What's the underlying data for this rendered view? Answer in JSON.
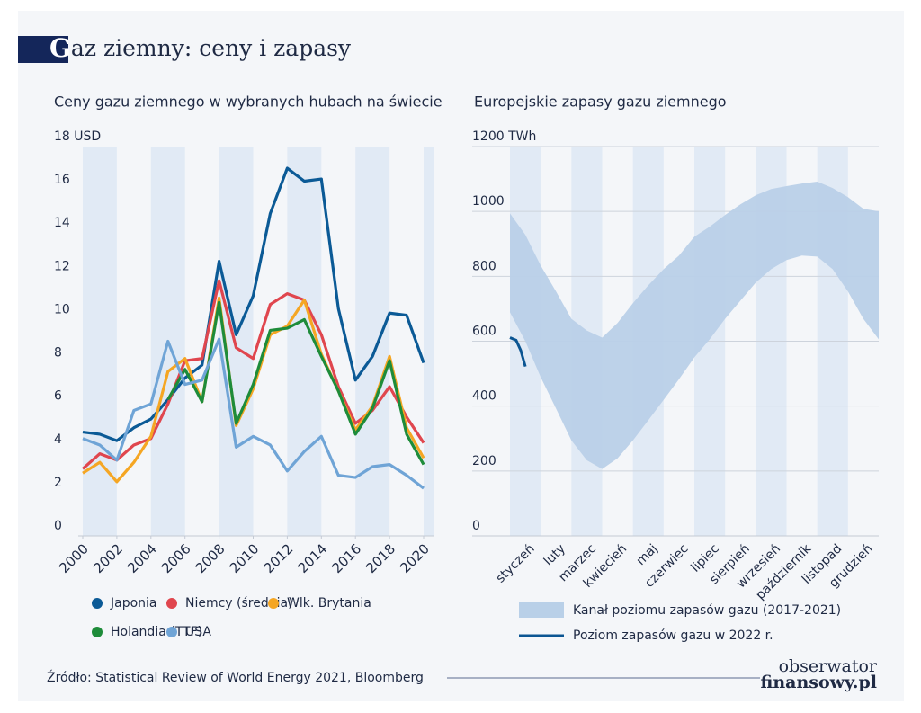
{
  "title": "Gaz ziemny: ceny i zapasy",
  "source": "Źródło: Statistical Review of World Energy 2021, Bloomberg",
  "logo": [
    "obserwator",
    "finansowy.pl"
  ],
  "chart_data": [
    {
      "type": "line",
      "title": "Ceny gazu ziemnego w wybranych hubach na świecie",
      "x": [
        2000,
        2001,
        2002,
        2003,
        2004,
        2005,
        2006,
        2007,
        2008,
        2009,
        2010,
        2011,
        2012,
        2013,
        2014,
        2015,
        2016,
        2017,
        2018,
        2019,
        2020
      ],
      "xlim": [
        2000,
        2020
      ],
      "xticks": [
        2000,
        2002,
        2004,
        2006,
        2008,
        2010,
        2012,
        2014,
        2016,
        2018,
        2020
      ],
      "ylim": [
        0,
        18
      ],
      "yticks": [
        0,
        2,
        4,
        6,
        8,
        10,
        12,
        14,
        16,
        {
          "value": 18,
          "label": "18 USD"
        }
      ],
      "grid": false,
      "series": [
        {
          "name": "Japonia",
          "color": "#0b5a96",
          "values": [
            4.8,
            4.7,
            4.4,
            5.0,
            5.4,
            6.3,
            7.3,
            7.9,
            12.7,
            9.3,
            11.1,
            14.9,
            17.0,
            16.4,
            16.5,
            10.5,
            7.2,
            8.3,
            10.3,
            10.2,
            8.0
          ]
        },
        {
          "name": "Niemcy (średnia)",
          "color": "#e0464e",
          "values": [
            3.1,
            3.8,
            3.5,
            4.2,
            4.5,
            6.1,
            8.1,
            8.2,
            11.8,
            8.7,
            8.2,
            10.7,
            11.2,
            10.9,
            9.3,
            6.9,
            5.2,
            5.8,
            6.9,
            5.5,
            4.3
          ]
        },
        {
          "name": "Wlk. Brytania",
          "color": "#f5a623",
          "values": [
            2.9,
            3.4,
            2.5,
            3.4,
            4.6,
            7.6,
            8.2,
            6.2,
            11.0,
            5.1,
            6.8,
            9.3,
            9.7,
            10.9,
            8.4,
            6.7,
            4.9,
            6.0,
            8.3,
            5.0,
            3.6
          ]
        },
        {
          "name": "Holandia (TTF)",
          "color": "#1e8c3a",
          "values": [
            null,
            null,
            null,
            null,
            null,
            6.3,
            7.7,
            6.2,
            10.8,
            5.2,
            7.0,
            9.5,
            9.6,
            10.0,
            8.3,
            6.7,
            4.7,
            5.9,
            8.1,
            4.7,
            3.3
          ]
        },
        {
          "name": "USA",
          "color": "#6fa4d6",
          "values": [
            4.5,
            4.2,
            3.5,
            5.8,
            6.1,
            9.0,
            7.0,
            7.2,
            9.1,
            4.1,
            4.6,
            4.2,
            3.0,
            3.9,
            4.6,
            2.8,
            2.7,
            3.2,
            3.3,
            2.8,
            2.2
          ]
        }
      ]
    },
    {
      "type": "area",
      "title": "Europejskie zapasy gazu ziemnego",
      "categories": [
        "styczeń",
        "luty",
        "marzec",
        "kwiecień",
        "maj",
        "czerwiec",
        "lipiec",
        "sierpień",
        "wrzesień",
        "październik",
        "listopad",
        "grudzień"
      ],
      "xlim": [
        0,
        12
      ],
      "ylim": [
        0,
        1200
      ],
      "yticks": [
        0,
        200,
        400,
        600,
        800,
        1000,
        {
          "value": 1200,
          "label": "1200 TWh"
        }
      ],
      "grid": true,
      "series": [
        {
          "name": "Kanał poziomu zapasów gazu (2017-2021)",
          "color": "#b9d0e8",
          "x": [
            0,
            0.5,
            1,
            1.5,
            2,
            2.5,
            3,
            3.5,
            4,
            4.5,
            5,
            5.5,
            6,
            6.5,
            7,
            7.5,
            8,
            8.5,
            9,
            9.5,
            10,
            10.5,
            11,
            11.5,
            12
          ],
          "upper": [
            994,
            928,
            833,
            753,
            669,
            633,
            611,
            656,
            717,
            772,
            822,
            864,
            922,
            953,
            989,
            1022,
            1050,
            1069,
            1078,
            1086,
            1092,
            1072,
            1044,
            1008,
            1000
          ],
          "lower": [
            689,
            600,
            489,
            392,
            294,
            233,
            206,
            239,
            294,
            356,
            419,
            483,
            550,
            606,
            669,
            725,
            781,
            822,
            850,
            864,
            861,
            822,
            753,
            669,
            606
          ]
        },
        {
          "name": "Poziom zapasów gazu w 2022 r.",
          "color": "#0b5592",
          "x": [
            0,
            0.2,
            0.35,
            0.5
          ],
          "values": [
            611,
            603,
            572,
            522
          ]
        }
      ]
    }
  ]
}
